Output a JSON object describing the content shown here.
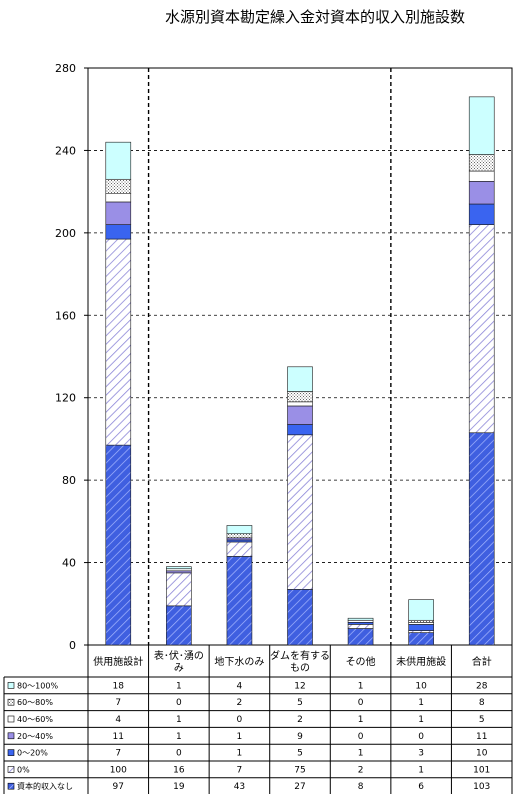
{
  "chart_data": {
    "type": "bar",
    "stacked": true,
    "title": "水源別資本勘定繰入金対資本的収入別施設数",
    "xlabel": "",
    "ylabel": "",
    "ylim": [
      0,
      280
    ],
    "yticks": [
      0,
      40,
      80,
      120,
      160,
      200,
      240,
      280
    ],
    "grid": true,
    "legend": "bottom-table",
    "categories": [
      "供用施設計",
      "表･伏･湧の み",
      "地下水のみ",
      "ダムを有する もの",
      "その他",
      "未供用施設",
      "合計"
    ],
    "series": [
      {
        "name": "資本的収入なし",
        "values": [
          97,
          19,
          43,
          27,
          8,
          6,
          103
        ],
        "color": "#3f5fe0",
        "pattern": "hatch-dense"
      },
      {
        "name": "0%",
        "values": [
          100,
          16,
          7,
          75,
          2,
          1,
          101
        ],
        "color": "#ffffff",
        "pattern": "hatch-light"
      },
      {
        "name": "0～20%",
        "values": [
          7,
          0,
          1,
          5,
          1,
          3,
          10
        ],
        "color": "#3a64f0",
        "pattern": "solid"
      },
      {
        "name": "20～40%",
        "values": [
          11,
          1,
          1,
          9,
          0,
          0,
          11
        ],
        "color": "#9a8fe6",
        "pattern": "solid"
      },
      {
        "name": "40～60%",
        "values": [
          4,
          1,
          0,
          2,
          1,
          1,
          5
        ],
        "color": "#ffffff",
        "pattern": "outline"
      },
      {
        "name": "60～80%",
        "values": [
          7,
          0,
          2,
          5,
          0,
          1,
          8
        ],
        "color": "#d9d9d9",
        "pattern": "dots"
      },
      {
        "name": "80～100%",
        "values": [
          18,
          1,
          4,
          12,
          1,
          10,
          28
        ],
        "color": "#ccffff",
        "pattern": "solid"
      }
    ],
    "dividers_after_category_index": [
      0,
      4
    ]
  }
}
